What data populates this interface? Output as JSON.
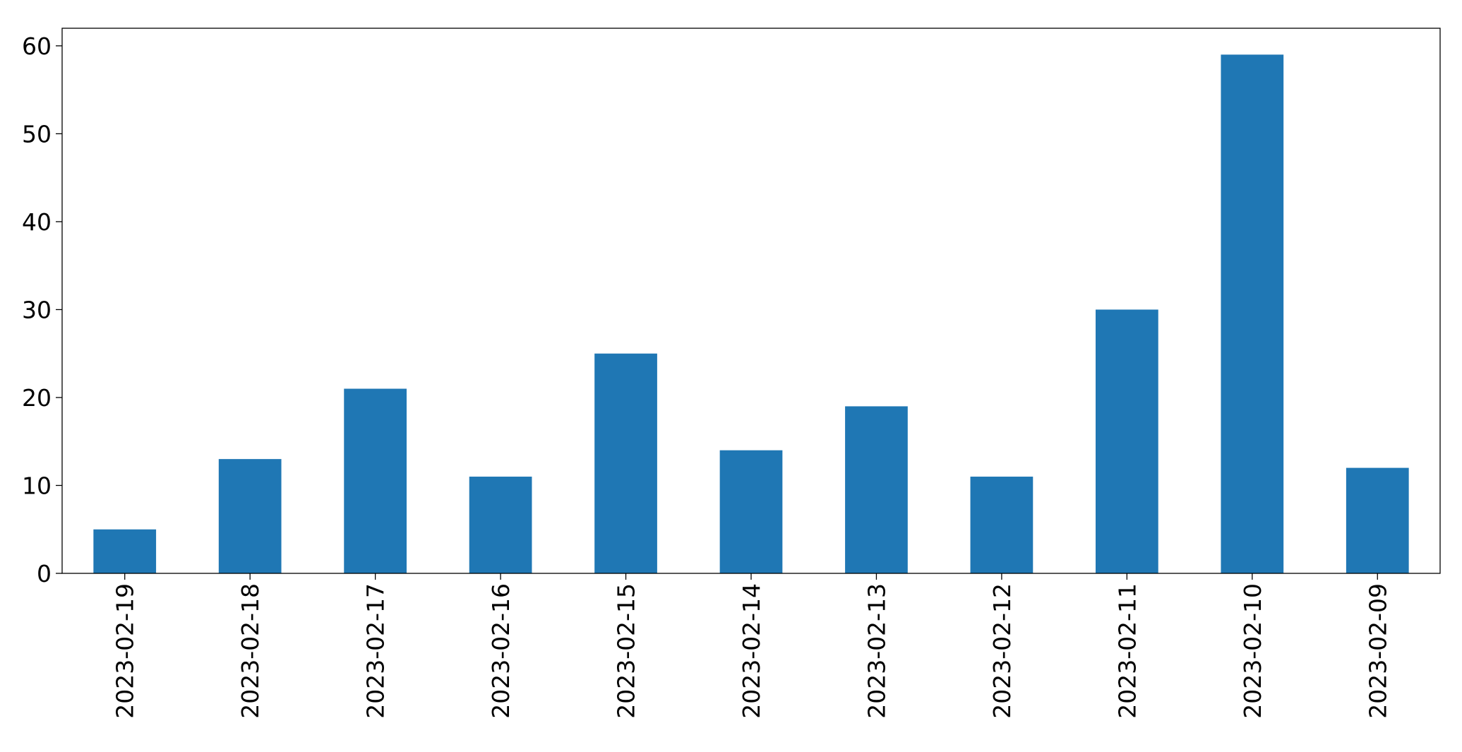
{
  "chart_data": {
    "type": "bar",
    "title": "",
    "xlabel": "",
    "ylabel": "",
    "categories": [
      "2023-02-19",
      "2023-02-18",
      "2023-02-17",
      "2023-02-16",
      "2023-02-15",
      "2023-02-14",
      "2023-02-13",
      "2023-02-12",
      "2023-02-11",
      "2023-02-10",
      "2023-02-09"
    ],
    "values": [
      5,
      13,
      21,
      11,
      25,
      14,
      19,
      11,
      30,
      59,
      12
    ],
    "ylim": [
      0,
      62
    ],
    "yticks": [
      0,
      10,
      20,
      30,
      40,
      50,
      60
    ],
    "grid": false,
    "legend": "none",
    "bar_color": "#1f77b4"
  }
}
